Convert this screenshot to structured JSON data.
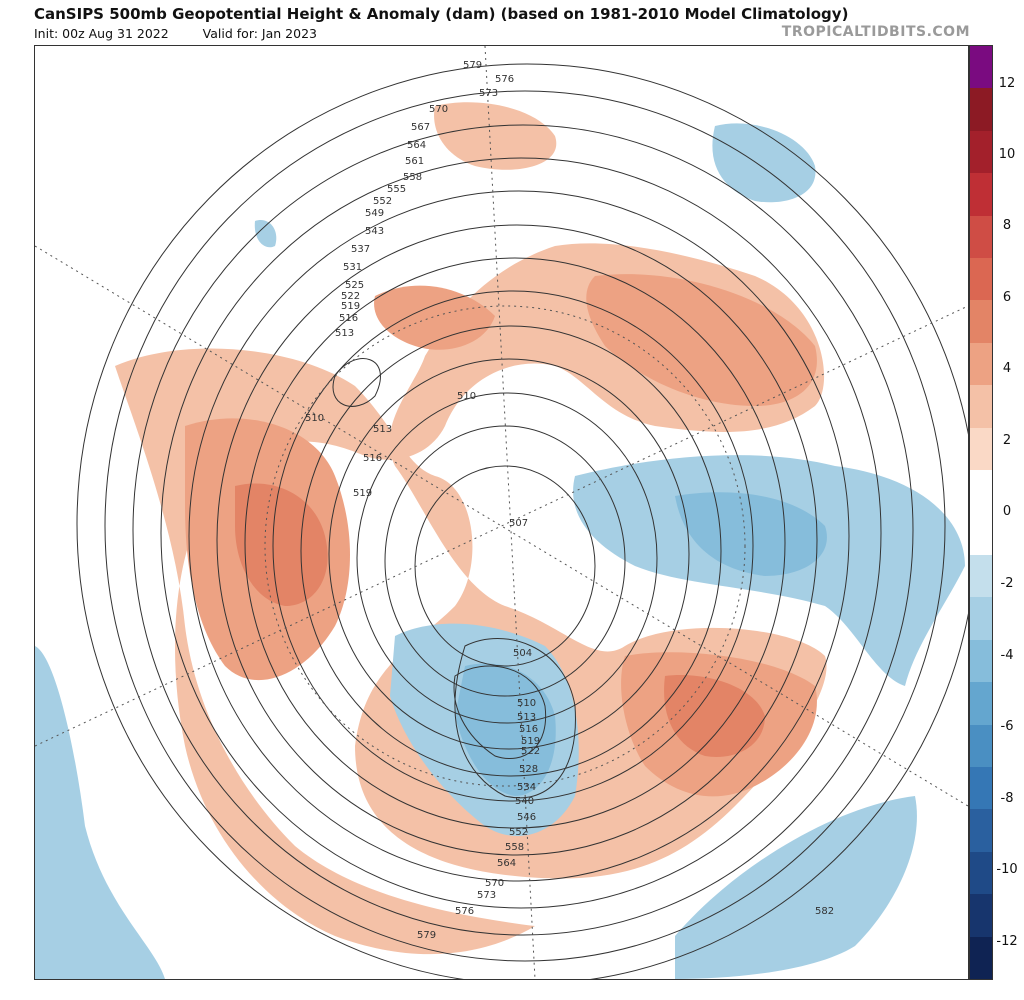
{
  "header": {
    "title": "CanSIPS 500mb Geopotential Height & Anomaly (dam) (based on 1981-2010 Model Climatology)",
    "init": "Init: 00z Aug 31 2022",
    "valid": "Valid for: Jan 2023",
    "brand": "TROPICALTIDBITS.COM"
  },
  "colorbar": {
    "ticks": [
      "12",
      "10",
      "8",
      "6",
      "4",
      "2",
      "0",
      "-2",
      "-4",
      "-6",
      "-8",
      "-10",
      "-12"
    ],
    "colors": [
      "#7a0b80",
      "#8c1a24",
      "#a3202b",
      "#bf2f35",
      "#cf4d45",
      "#db6752",
      "#e38466",
      "#eda283",
      "#f4c1a7",
      "#fad9c6",
      "#ffffff",
      "#ffffff",
      "#c4dfec",
      "#a6cfe4",
      "#86bddb",
      "#64a6cf",
      "#4a8fc2",
      "#3577b5",
      "#2a609f",
      "#1f4a87",
      "#17356d",
      "#0f2353"
    ],
    "accent_warm": "#eda283",
    "accent_cool": "#a6cfe4"
  },
  "contours": {
    "labels": [
      "579",
      "576",
      "573",
      "570",
      "567",
      "564",
      "561",
      "558",
      "555",
      "552",
      "549",
      "543",
      "537",
      "531",
      "525",
      "522",
      "519",
      "516",
      "513",
      "510",
      "513",
      "516",
      "519",
      "510",
      "507",
      "504",
      "510",
      "513",
      "516",
      "519",
      "522",
      "528",
      "534",
      "540",
      "546",
      "552",
      "558",
      "564",
      "570",
      "573",
      "576",
      "579",
      "582"
    ]
  }
}
